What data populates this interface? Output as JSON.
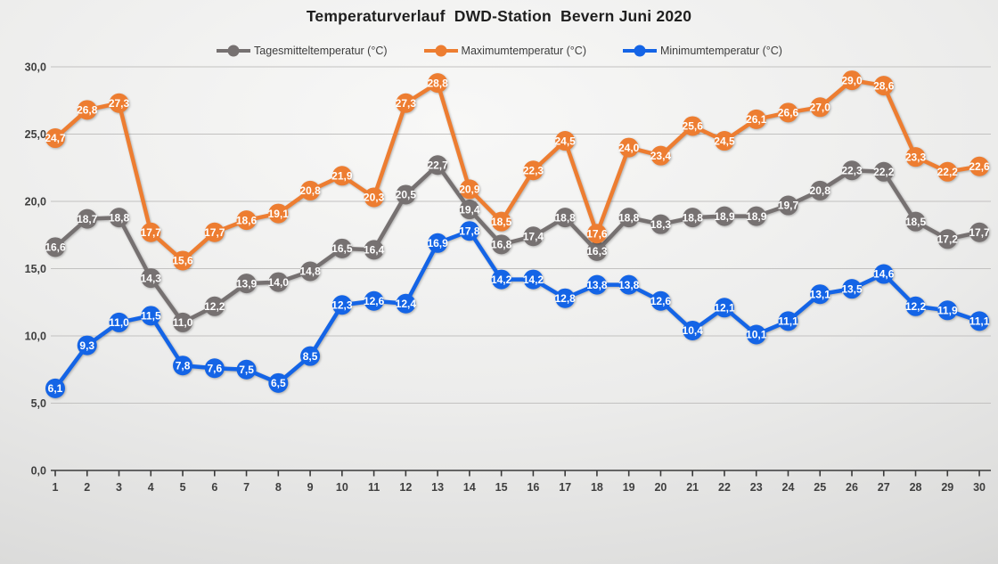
{
  "chart": {
    "title": "Temperaturverlauf  DWD-Station  Bevern Juni 2020"
  },
  "chart_data": {
    "type": "line",
    "title": "Temperaturverlauf  DWD-Station  Bevern Juni 2020",
    "xlabel": "",
    "ylabel": "",
    "x": [
      1,
      2,
      3,
      4,
      5,
      6,
      7,
      8,
      9,
      10,
      11,
      12,
      13,
      14,
      15,
      16,
      17,
      18,
      19,
      20,
      21,
      22,
      23,
      24,
      25,
      26,
      27,
      28,
      29,
      30
    ],
    "series": [
      {
        "name": "Tagesmitteltemperatur (°C)",
        "color": "#767171",
        "values": [
          16.6,
          18.7,
          18.8,
          14.3,
          11.0,
          12.2,
          13.9,
          14.0,
          14.8,
          16.5,
          16.4,
          20.5,
          22.7,
          19.4,
          16.8,
          17.4,
          18.8,
          16.3,
          18.8,
          18.3,
          18.8,
          18.9,
          18.9,
          19.7,
          20.8,
          22.3,
          22.2,
          18.5,
          17.2,
          17.7
        ]
      },
      {
        "name": "Maximumtemperatur (°C)",
        "color": "#ED7D31",
        "values": [
          24.7,
          26.8,
          27.3,
          17.7,
          15.6,
          17.7,
          18.6,
          19.1,
          20.8,
          21.9,
          20.3,
          27.3,
          28.8,
          20.9,
          18.5,
          22.3,
          24.5,
          17.6,
          24.0,
          23.4,
          25.6,
          24.5,
          26.1,
          26.6,
          27.0,
          29.0,
          28.6,
          23.3,
          22.2,
          22.6
        ]
      },
      {
        "name": "Minimumtemperatur (°C)",
        "color": "#1464E6",
        "values": [
          6.1,
          9.3,
          11.0,
          11.5,
          7.8,
          7.6,
          7.5,
          6.5,
          8.5,
          12.3,
          12.6,
          12.4,
          16.9,
          17.8,
          14.2,
          14.2,
          12.8,
          13.8,
          13.8,
          12.6,
          10.4,
          12.1,
          10.1,
          11.1,
          13.1,
          13.5,
          14.6,
          12.2,
          11.9,
          11.1
        ]
      }
    ],
    "ylim": [
      0,
      30
    ],
    "ytick_step": 5,
    "ytick_labels": [
      "0,0",
      "5,0",
      "10,0",
      "15,0",
      "20,0",
      "25,0",
      "30,0"
    ],
    "grid": true,
    "legend_position": "top",
    "number_format": "comma-decimal"
  }
}
